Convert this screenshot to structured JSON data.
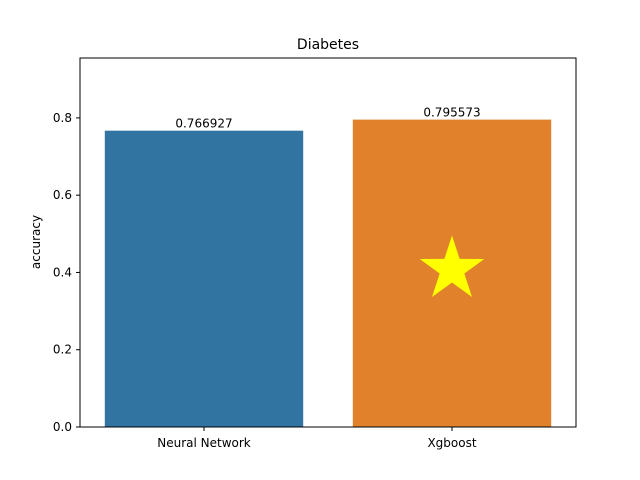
{
  "chart_data": {
    "type": "bar",
    "title": "Diabetes",
    "xlabel": "",
    "ylabel": "accuracy",
    "categories": [
      "Neural Network",
      "Xgboost"
    ],
    "values": [
      0.766927,
      0.795573
    ],
    "data_labels": [
      "0.766927",
      "0.795573"
    ],
    "bar_colors": [
      "#3274a1",
      "#e1812c"
    ],
    "ylim": [
      0,
      0.955
    ],
    "yticks": [
      0.0,
      0.2,
      0.4,
      0.6,
      0.8
    ],
    "ytick_labels": [
      "0.0",
      "0.2",
      "0.4",
      "0.6",
      "0.8"
    ],
    "grid": false,
    "annotations": [
      {
        "type": "star",
        "category": "Xgboost",
        "y": 0.4,
        "color": "#ffff00"
      }
    ]
  }
}
